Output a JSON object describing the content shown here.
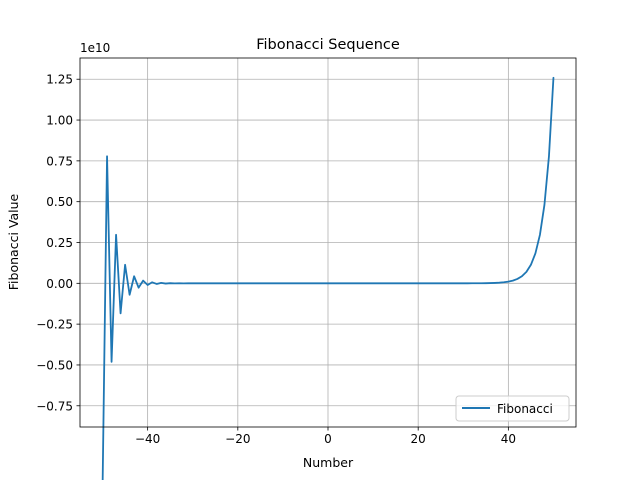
{
  "chart_data": {
    "type": "line",
    "title": "Fibonacci Sequence",
    "xlabel": "Number",
    "ylabel": "Fibonacci Value",
    "y_offset_label": "1e10",
    "y_scale": 10000000000,
    "xlim": [
      -55,
      55
    ],
    "ylim": [
      -8800000000,
      13800000000
    ],
    "x_ticks": [
      -40,
      -20,
      0,
      20,
      40
    ],
    "x_tick_labels": [
      "−40",
      "−20",
      "0",
      "20",
      "40"
    ],
    "y_ticks": [
      -7500000000,
      -5000000000,
      -2500000000,
      0,
      2500000000,
      5000000000,
      7500000000,
      10000000000,
      12500000000
    ],
    "y_tick_labels": [
      "−0.75",
      "−0.50",
      "−0.25",
      "0.00",
      "0.25",
      "0.50",
      "0.75",
      "1.00",
      "1.25"
    ],
    "grid": true,
    "legend_position": "lower-right",
    "series": [
      {
        "name": "Fibonacci",
        "color": "#1f77b4",
        "x": [
          -50,
          -49,
          -48,
          -47,
          -46,
          -45,
          -44,
          -43,
          -42,
          -41,
          -40,
          -39,
          -38,
          -37,
          -36,
          -35,
          -34,
          -33,
          -32,
          -31,
          -30,
          -29,
          -28,
          -27,
          -26,
          -25,
          -24,
          -23,
          -22,
          -21,
          -20,
          -19,
          -18,
          -17,
          -16,
          -15,
          -14,
          -13,
          -12,
          -11,
          -10,
          -9,
          -8,
          -7,
          -6,
          -5,
          -4,
          -3,
          -2,
          -1,
          0,
          1,
          2,
          3,
          4,
          5,
          6,
          7,
          8,
          9,
          10,
          11,
          12,
          13,
          14,
          15,
          16,
          17,
          18,
          19,
          20,
          21,
          22,
          23,
          24,
          25,
          26,
          27,
          28,
          29,
          30,
          31,
          32,
          33,
          34,
          35,
          36,
          37,
          38,
          39,
          40,
          41,
          42,
          43,
          44,
          45,
          46,
          47,
          48,
          49,
          50
        ],
        "y": [
          -12586269025,
          7778742049,
          -4807526976,
          2971215073,
          -1836311903,
          1134903170,
          -701408733,
          433494437,
          -267914296,
          165580141,
          -102334155,
          63245986,
          -39088169,
          24157817,
          -14930352,
          9227465,
          -5702887,
          3524578,
          -2178309,
          1346269,
          -832040,
          514229,
          -317811,
          196418,
          -121393,
          75025,
          -46368,
          28657,
          -17711,
          10946,
          -6765,
          4181,
          -2584,
          1597,
          -987,
          610,
          -377,
          233,
          -144,
          89,
          -55,
          34,
          -21,
          13,
          -8,
          5,
          -3,
          2,
          -1,
          1,
          0,
          1,
          1,
          2,
          3,
          5,
          8,
          13,
          21,
          34,
          55,
          89,
          144,
          233,
          377,
          610,
          987,
          1597,
          2584,
          4181,
          6765,
          10946,
          17711,
          28657,
          46368,
          75025,
          121393,
          196418,
          317811,
          514229,
          832040,
          1346269,
          2178309,
          3524578,
          5702887,
          9227465,
          14930352,
          24157817,
          39088169,
          63245986,
          102334155,
          165580141,
          267914296,
          433494437,
          701408733,
          1134903170,
          1836311903,
          2971215073,
          4807526976,
          7778742049,
          12586269025
        ]
      }
    ]
  }
}
